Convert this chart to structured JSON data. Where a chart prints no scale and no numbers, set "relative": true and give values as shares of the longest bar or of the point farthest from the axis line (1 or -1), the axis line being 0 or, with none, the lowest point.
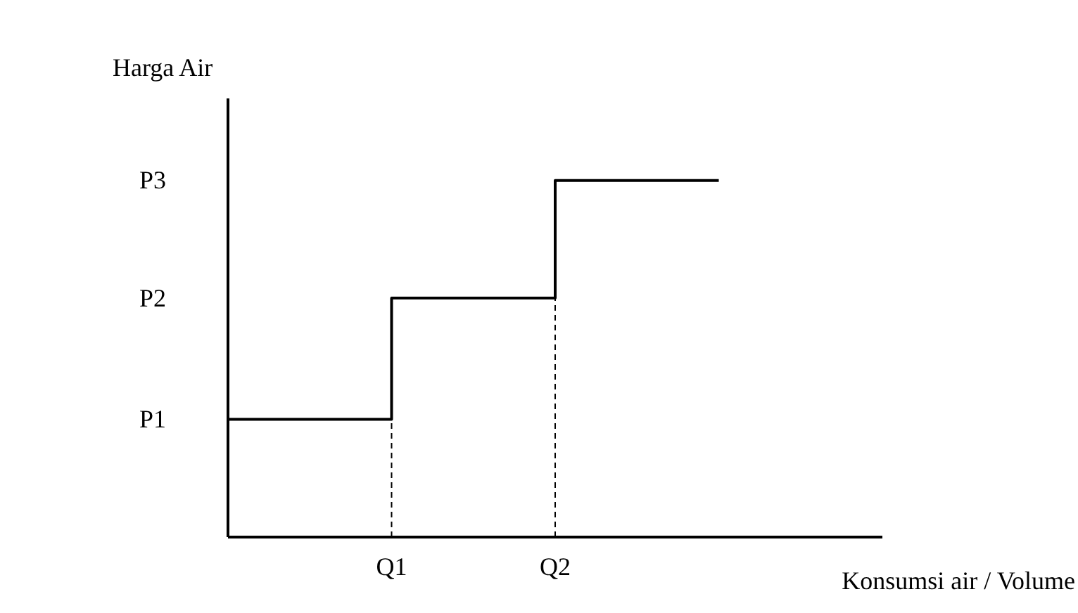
{
  "chart_data": {
    "type": "step",
    "relative": true,
    "xlabel": "Konsumsi air / Volume",
    "ylabel": "Harga Air",
    "categories": [
      null,
      "Q1",
      "Q2",
      null,
      null
    ],
    "series": [
      {
        "color": "#000000",
        "values": [
          0.33,
          0.67,
          1,
          1,
          null
        ]
      }
    ],
    "annotations": [
      "P1",
      "P2",
      "P3"
    ],
    "ref_lines": [
      {
        "axis": "x",
        "value": "Q1",
        "label": null,
        "color": "#000000",
        "line_style": "dashed"
      },
      {
        "axis": "x",
        "value": "Q2",
        "label": null,
        "color": "#000000",
        "line_style": "dashed"
      }
    ],
    "grid": false,
    "legend": false,
    "marker": "none",
    "line_style": "solid"
  }
}
